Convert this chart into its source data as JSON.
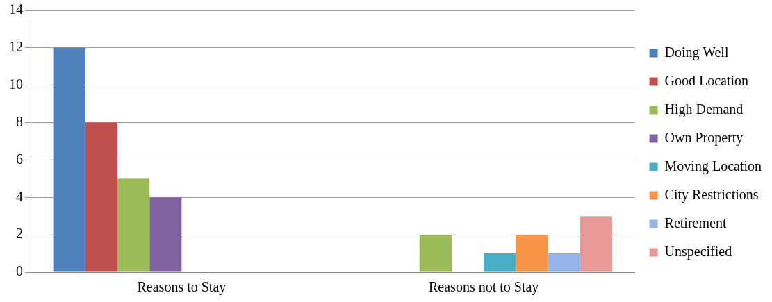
{
  "chart_data": {
    "type": "bar",
    "categories": [
      "Reasons to Stay",
      "Reasons not to Stay"
    ],
    "series": [
      {
        "name": "Doing Well",
        "color": "#4f81bd",
        "values": [
          12,
          0
        ]
      },
      {
        "name": "Good Location",
        "color": "#c0504d",
        "values": [
          8,
          0
        ]
      },
      {
        "name": "High Demand",
        "color": "#9bbb59",
        "values": [
          5,
          2
        ]
      },
      {
        "name": "Own Property",
        "color": "#8064a2",
        "values": [
          4,
          0
        ]
      },
      {
        "name": "Moving Location",
        "color": "#4bacc6",
        "values": [
          0,
          1
        ]
      },
      {
        "name": "City Restrictions",
        "color": "#f79646",
        "values": [
          0,
          2
        ]
      },
      {
        "name": "Retirement",
        "color": "#95b3e8",
        "values": [
          0,
          1
        ]
      },
      {
        "name": "Unspecified",
        "color": "#e89a9a",
        "values": [
          0,
          3
        ]
      }
    ],
    "ylim": [
      0,
      14
    ],
    "yticks": [
      0,
      2,
      4,
      6,
      8,
      10,
      12,
      14
    ],
    "grid": "y",
    "legend": "right"
  }
}
